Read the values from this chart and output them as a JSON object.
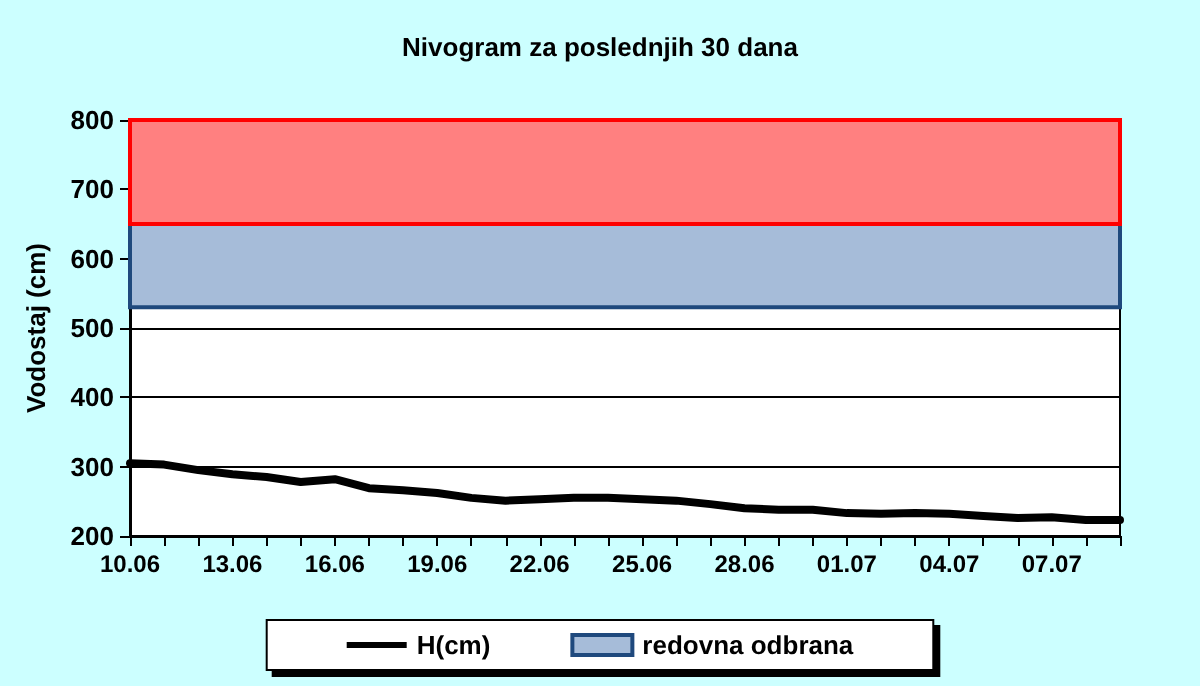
{
  "chart_data": {
    "type": "line",
    "title": "Nivogram za poslednjih 30 dana",
    "ylabel": "Vodostaj (cm)",
    "categories": [
      "10.06",
      null,
      null,
      "13.06",
      null,
      null,
      "16.06",
      null,
      null,
      "19.06",
      null,
      null,
      "22.06",
      null,
      null,
      "25.06",
      null,
      null,
      "28.06",
      null,
      null,
      "01.07",
      null,
      null,
      "04.07",
      null,
      null,
      "07.07",
      null,
      null
    ],
    "series": [
      {
        "name": "H(cm)",
        "color": "#000000",
        "values": [
          305,
          303,
          295,
          289,
          285,
          278,
          282,
          269,
          266,
          262,
          255,
          251,
          253,
          255,
          255,
          253,
          251,
          246,
          240,
          238,
          238,
          233,
          232,
          233,
          232,
          229,
          226,
          227,
          223,
          223
        ]
      }
    ],
    "bands": [
      {
        "axis": "y",
        "from": 530,
        "to": 650,
        "label": "redovna odbrana",
        "color": "#a6bcd9"
      },
      {
        "axis": "y",
        "from": 650,
        "to": 800,
        "label": null,
        "color": "#ff8080"
      }
    ],
    "ylim": [
      200,
      800
    ],
    "yticks": [
      200,
      300,
      400,
      500,
      600,
      700,
      800
    ],
    "grid": "y",
    "legend": "bottom",
    "marker": "none",
    "line_style": "solid"
  }
}
